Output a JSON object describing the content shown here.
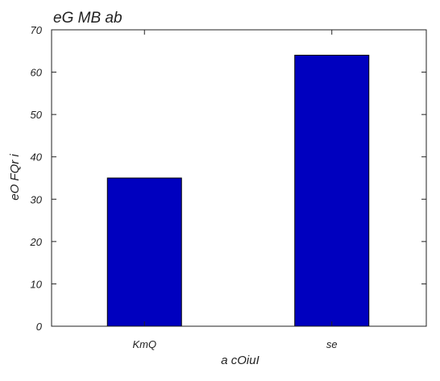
{
  "chart_data": {
    "type": "bar",
    "title": "eG MB ab",
    "xlabel": "a cOiuI",
    "ylabel": "eO FQr i",
    "categories": [
      "KmQ",
      "se"
    ],
    "values": [
      35,
      64
    ],
    "ylim": [
      0,
      70
    ],
    "yticks": [
      0,
      10,
      20,
      30,
      40,
      50,
      60,
      70
    ],
    "grid": false,
    "legend": "none",
    "colors": {
      "bar_fill": "#0000bf",
      "bar_edge": "#000000",
      "axes": "#222222",
      "text": "#222222"
    }
  }
}
